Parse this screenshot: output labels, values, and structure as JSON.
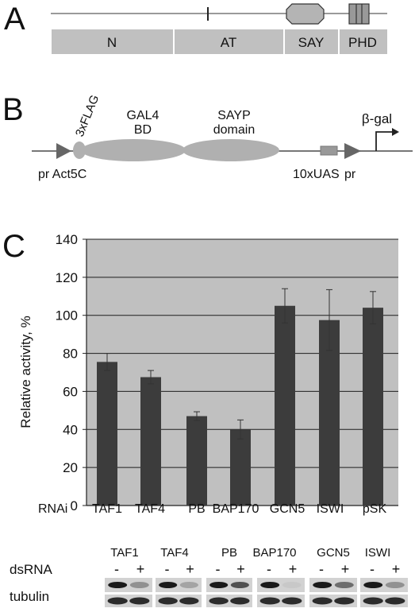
{
  "panels": {
    "a": {
      "letter": "A",
      "domains": [
        "N",
        "AT",
        "SAY",
        "PHD"
      ]
    },
    "b": {
      "letter": "B",
      "labels": {
        "flag": "3xFLAG",
        "gal4_line1": "GAL4",
        "gal4_line2": "BD",
        "sayp_line1": "SAYP",
        "sayp_line2": "domain",
        "bgal": "β-gal",
        "promoter_left": "pr Act5C",
        "uas": "10xUAS",
        "promoter_right": "pr"
      }
    },
    "c": {
      "letter": "C",
      "rnai_label": "RNAi",
      "blot": {
        "dsrna_label": "dsRNA",
        "tubulin_label": "tubulin",
        "groups": [
          "TAF1",
          "TAF4",
          "PB",
          "BAP170",
          "GCN5",
          "ISWI"
        ],
        "minus": "-",
        "plus": "+"
      }
    }
  },
  "chart_data": {
    "type": "bar",
    "categories": [
      "TAF1",
      "TAF4",
      "PB",
      "BAP170",
      "GCN5",
      "ISWI",
      "pSK"
    ],
    "values": [
      75.5,
      67.5,
      47,
      40,
      105,
      97.5,
      104
    ],
    "errors": [
      4.5,
      3.5,
      2.3,
      5,
      9,
      16,
      8.5
    ],
    "ylabel": "Relative activity, %",
    "xlabel": "",
    "ylim": [
      0,
      140
    ],
    "yticks": [
      0,
      20,
      40,
      60,
      80,
      100,
      120,
      140
    ],
    "grid": true,
    "colors": {
      "bar": "#3c3c3c",
      "plot_bg": "#c0c0c0",
      "grid": "#1e1e1e"
    }
  }
}
